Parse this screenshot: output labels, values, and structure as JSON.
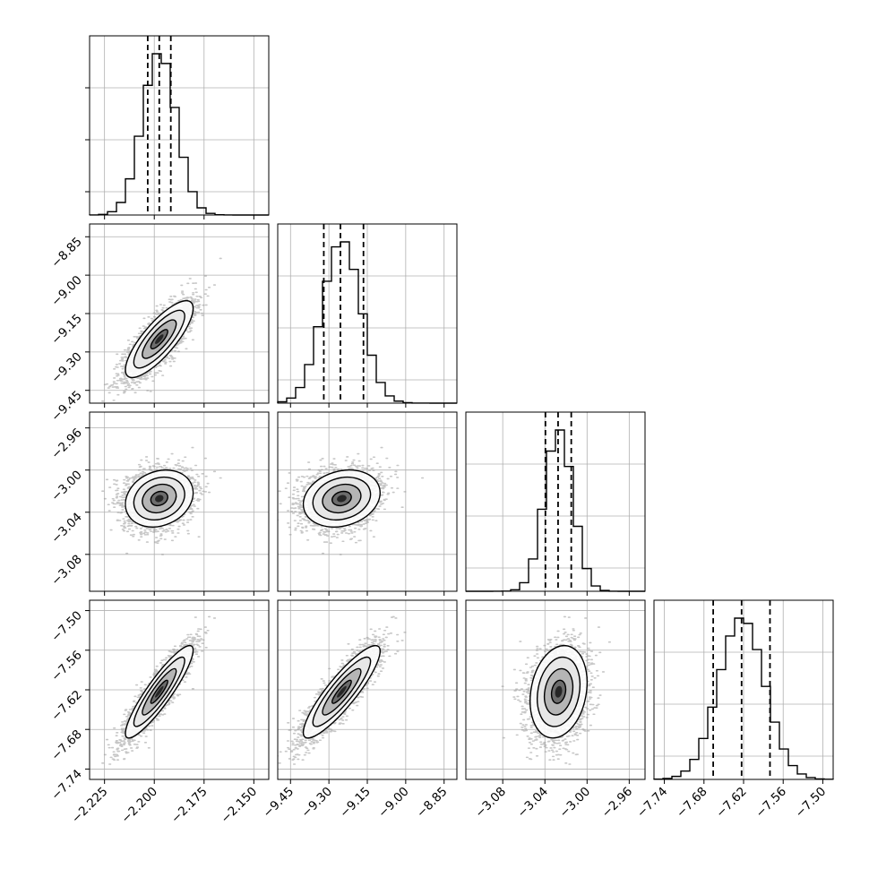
{
  "chart_data": {
    "type": "corner",
    "grid": true,
    "parameters": [
      {
        "range": [
          -2.2325,
          -2.1425
        ],
        "ticks": [
          "−2.225",
          "−2.200",
          "−2.175",
          "−2.150"
        ],
        "tick_values": [
          -2.225,
          -2.2,
          -2.175,
          -2.15
        ],
        "quantiles": [
          -2.2033,
          -2.1975,
          -2.1917
        ],
        "mean": -2.1975,
        "sd": 0.0085
      },
      {
        "range": [
          -9.5,
          -8.8
        ],
        "ticks": [
          "−9.45",
          "−9.30",
          "−9.15",
          "−9.00",
          "−8.85"
        ],
        "tick_values": [
          -9.45,
          -9.3,
          -9.15,
          -9.0,
          -8.85
        ],
        "quantiles": [
          -9.32,
          -9.255,
          -9.165
        ],
        "mean": -9.25,
        "sd": 0.075
      },
      {
        "range": [
          -3.115,
          -2.945
        ],
        "ticks": [
          "−3.08",
          "−3.04",
          "−3.00",
          "−2.96"
        ],
        "tick_values": [
          -3.08,
          -3.04,
          -3.0,
          -2.96
        ],
        "quantiles": [
          -3.0395,
          -3.0275,
          -3.015
        ],
        "mean": -3.027,
        "sd": 0.0135
      },
      {
        "range": [
          -7.7557,
          -7.4843
        ],
        "ticks": [
          "−7.74",
          "−7.68",
          "−7.62",
          "−7.56",
          "−7.50"
        ],
        "tick_values": [
          -7.74,
          -7.68,
          -7.62,
          -7.56,
          -7.5
        ],
        "quantiles": [
          -7.666,
          -7.623,
          -7.58
        ],
        "mean": -7.623,
        "sd": 0.035
      }
    ],
    "correlations": [
      [
        1,
        0.8,
        0.2,
        0.9
      ],
      [
        0.8,
        1,
        0.2,
        0.88
      ],
      [
        0.2,
        0.2,
        1,
        0.2
      ],
      [
        0.9,
        0.88,
        0.2,
        1
      ]
    ],
    "histogram_bins": 20,
    "contour_levels_sigma": [
      0.5,
      1.0,
      1.5,
      2.0
    ]
  }
}
